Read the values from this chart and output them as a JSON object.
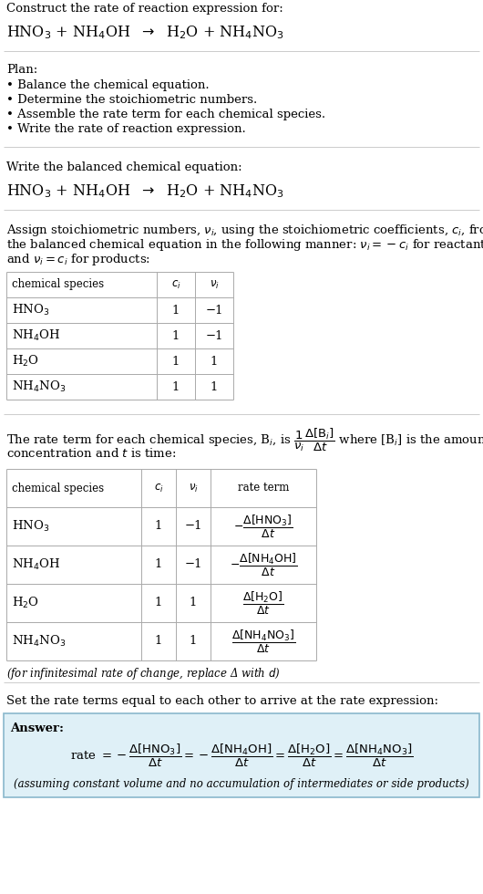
{
  "title_line1": "Construct the rate of reaction expression for:",
  "plan_header": "Plan:",
  "plan_items": [
    "• Balance the chemical equation.",
    "• Determine the stoichiometric numbers.",
    "• Assemble the rate term for each chemical species.",
    "• Write the rate of reaction expression."
  ],
  "balanced_header": "Write the balanced chemical equation:",
  "stoich_intro_lines": [
    "Assign stoichiometric numbers, $\\nu_i$, using the stoichiometric coefficients, $c_i$, from",
    "the balanced chemical equation in the following manner: $\\nu_i = -c_i$ for reactants",
    "and $\\nu_i = c_i$ for products:"
  ],
  "table1_col_headers": [
    "chemical species",
    "$c_i$",
    "$\\nu_i$"
  ],
  "table1_rows": [
    [
      "HNO$_3$",
      "1",
      "−1"
    ],
    [
      "NH$_4$OH",
      "1",
      "−1"
    ],
    [
      "H$_2$O",
      "1",
      "1"
    ],
    [
      "NH$_4$NO$_3$",
      "1",
      "1"
    ]
  ],
  "rate_intro_lines": [
    "The rate term for each chemical species, B$_i$, is $\\dfrac{1}{\\nu_i}\\dfrac{\\Delta[\\mathrm{B}_i]}{\\Delta t}$ where [B$_i$] is the amount",
    "concentration and $t$ is time:"
  ],
  "table2_col_headers": [
    "chemical species",
    "$c_i$",
    "$\\nu_i$",
    "rate term"
  ],
  "table2_rows": [
    [
      "HNO$_3$",
      "1",
      "−1",
      "$-\\dfrac{\\Delta[\\mathrm{HNO_3}]}{\\Delta t}$"
    ],
    [
      "NH$_4$OH",
      "1",
      "−1",
      "$-\\dfrac{\\Delta[\\mathrm{NH_4OH}]}{\\Delta t}$"
    ],
    [
      "H$_2$O",
      "1",
      "1",
      "$\\dfrac{\\Delta[\\mathrm{H_2O}]}{\\Delta t}$"
    ],
    [
      "NH$_4$NO$_3$",
      "1",
      "1",
      "$\\dfrac{\\Delta[\\mathrm{NH_4NO_3}]}{\\Delta t}$"
    ]
  ],
  "infinitesimal_note": "(for infinitesimal rate of change, replace Δ with $d$)",
  "set_equal_text": "Set the rate terms equal to each other to arrive at the rate expression:",
  "answer_label": "Answer:",
  "assumption_note": "(assuming constant volume and no accumulation of intermediates or side products)",
  "bg_color": "#ffffff",
  "answer_bg": "#dff0f7",
  "answer_border": "#8ab8cc",
  "text_color": "#000000",
  "table_line_color": "#aaaaaa",
  "section_line_color": "#cccccc"
}
